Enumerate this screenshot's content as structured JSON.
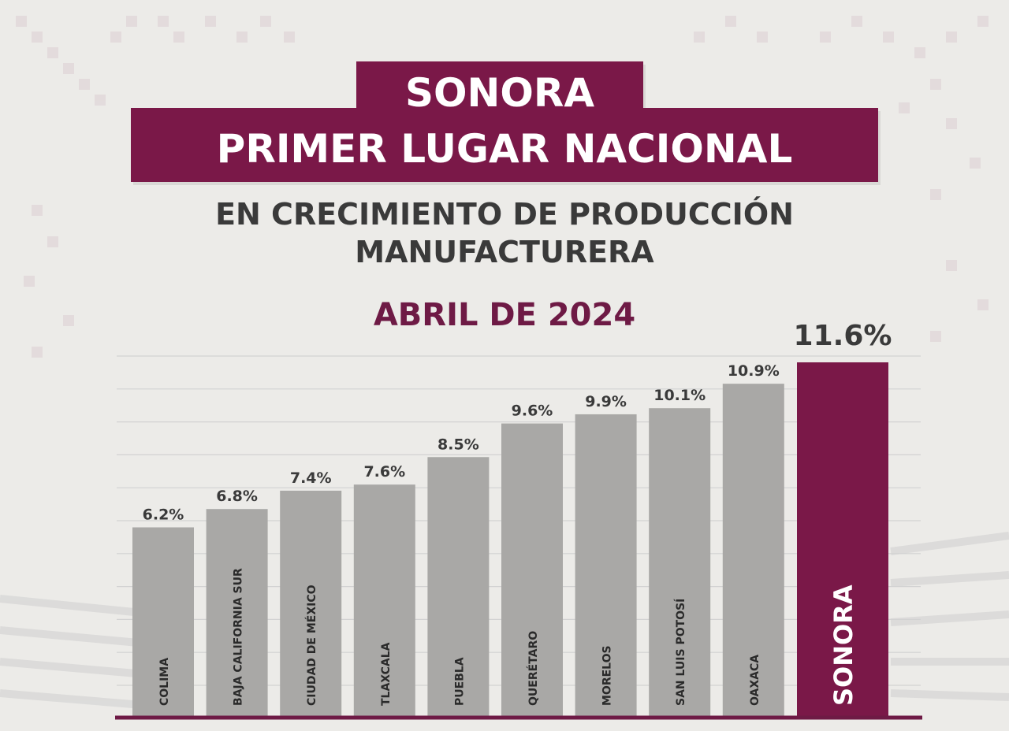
{
  "header": {
    "title_line_1": "SONORA",
    "title_line_2": "PRIMER LUGAR NACIONAL",
    "subtitle_line_1": "EN CRECIMIENTO DE PRODUCCIÓN",
    "subtitle_line_2": "MANUFACTURERA",
    "period": "ABRIL DE 2024"
  },
  "colors": {
    "brand": "#7a1848",
    "bar_default": "#a9a8a6",
    "highlight_bar": "#7a1848",
    "axis_line": "#6e1a45"
  },
  "chart_data": {
    "type": "bar",
    "orientation": "vertical",
    "categories": [
      "COLIMA",
      "BAJA CALIFORNIA SUR",
      "CIUDAD DE MÉXICO",
      "TLAXCALA",
      "PUEBLA",
      "QUERÉTARO",
      "MORELOS",
      "SAN LUIS POTOSÍ",
      "OAXACA",
      "SONORA"
    ],
    "values": [
      6.2,
      6.8,
      7.4,
      7.6,
      8.5,
      9.6,
      9.9,
      10.1,
      10.9,
      11.6
    ],
    "value_labels": [
      "6.2%",
      "6.8%",
      "7.4%",
      "7.6%",
      "8.5%",
      "9.6%",
      "9.9%",
      "10.1%",
      "10.9%",
      "11.6%"
    ],
    "highlight": "SONORA",
    "unit": "%",
    "ylim": [
      0,
      12
    ],
    "grid": true,
    "legend": false
  }
}
